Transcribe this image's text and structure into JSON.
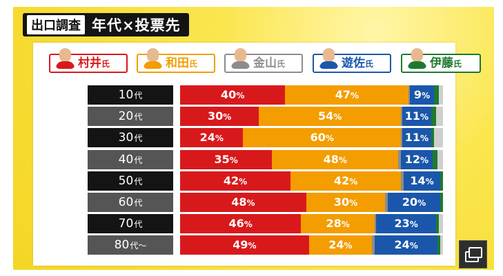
{
  "header": {
    "tag": "出口調査",
    "title": "年代×投票先"
  },
  "candidates": [
    {
      "name": "村井",
      "suffix": "氏",
      "color": "#d8191c",
      "icon": "candidate-portrait-icon"
    },
    {
      "name": "和田",
      "suffix": "氏",
      "color": "#f39d00",
      "icon": "candidate-portrait-icon"
    },
    {
      "name": "金山",
      "suffix": "氏",
      "color": "#8c8c8c",
      "icon": "candidate-portrait-icon"
    },
    {
      "name": "遊佐",
      "suffix": "氏",
      "color": "#1a57ab",
      "icon": "candidate-portrait-icon"
    },
    {
      "name": "伊藤",
      "suffix": "氏",
      "color": "#1c7a2f",
      "icon": "candidate-portrait-icon"
    }
  ],
  "pct_suffix": "%",
  "chart_data": {
    "type": "bar",
    "stacked": true,
    "orientation": "horizontal",
    "title": "年代×投票先",
    "categories": [
      "10代",
      "20代",
      "30代",
      "40代",
      "50代",
      "60代",
      "70代",
      "80代～"
    ],
    "category_labels": [
      {
        "main": "10",
        "suffix": "代"
      },
      {
        "main": "20",
        "suffix": "代"
      },
      {
        "main": "30",
        "suffix": "代"
      },
      {
        "main": "40",
        "suffix": "代"
      },
      {
        "main": "50",
        "suffix": "代"
      },
      {
        "main": "60",
        "suffix": "代"
      },
      {
        "main": "70",
        "suffix": "代"
      },
      {
        "main": "80",
        "suffix": "代～"
      }
    ],
    "series": [
      {
        "name": "村井氏",
        "color": "#d8191c",
        "values": [
          40,
          30,
          24,
          35,
          42,
          48,
          46,
          49
        ],
        "labeled": [
          true,
          true,
          true,
          true,
          true,
          true,
          true,
          true
        ]
      },
      {
        "name": "和田氏",
        "color": "#f39d00",
        "values": [
          47,
          54,
          60,
          48,
          42,
          30,
          28,
          24
        ],
        "labeled": [
          true,
          true,
          true,
          true,
          true,
          true,
          true,
          true
        ]
      },
      {
        "name": "金山氏",
        "color": "#8c8c8c",
        "values": [
          0.5,
          0.5,
          0.5,
          1,
          1,
          1,
          0.5,
          1
        ],
        "labeled": [
          false,
          false,
          false,
          false,
          false,
          false,
          false,
          false
        ]
      },
      {
        "name": "遊佐氏",
        "color": "#1a57ab",
        "values": [
          9,
          11,
          11,
          12,
          14,
          20,
          23,
          24
        ],
        "labeled": [
          true,
          true,
          true,
          true,
          true,
          true,
          true,
          true
        ]
      },
      {
        "name": "伊藤氏",
        "color": "#1c7a2f",
        "values": [
          2,
          2,
          1,
          2,
          1,
          1,
          1,
          1
        ],
        "labeled": [
          false,
          false,
          false,
          false,
          false,
          false,
          false,
          false
        ]
      }
    ],
    "xlim": [
      0,
      100
    ],
    "unit": "%",
    "label_box_colors": [
      "#141414",
      "#555555",
      "#141414",
      "#555555",
      "#141414",
      "#555555",
      "#141414",
      "#555555"
    ]
  }
}
